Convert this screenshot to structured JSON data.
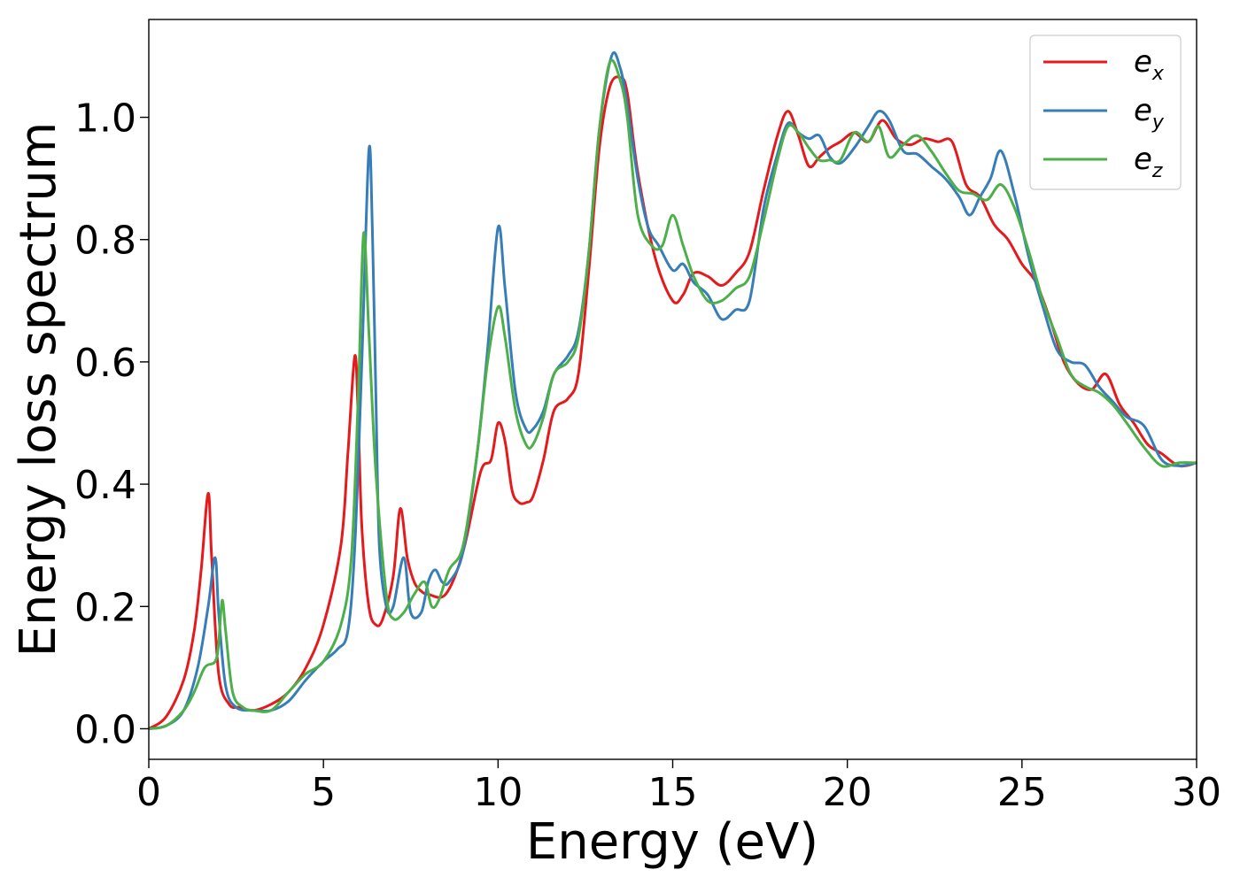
{
  "chart_data": {
    "type": "line",
    "xlabel": "Energy (eV)",
    "ylabel": "Energy loss spectrum",
    "xlim": [
      0,
      30
    ],
    "ylim": [
      -0.05,
      1.16
    ],
    "xticks": [
      0,
      5,
      10,
      15,
      20,
      25,
      30
    ],
    "yticks": [
      0.0,
      0.2,
      0.4,
      0.6,
      0.8,
      1.0
    ],
    "xtick_labels": [
      "0",
      "5",
      "10",
      "15",
      "20",
      "25",
      "30"
    ],
    "ytick_labels": [
      "0.0",
      "0.2",
      "0.4",
      "0.6",
      "0.8",
      "1.0"
    ],
    "grid": false,
    "legend_position": "top-right",
    "series": [
      {
        "name": "e",
        "sub": "x",
        "color": "#e41a1c",
        "x": [
          0,
          0.5,
          1.0,
          1.3,
          1.5,
          1.7,
          1.8,
          2.0,
          2.3,
          2.6,
          3.0,
          3.5,
          4.0,
          4.5,
          5.0,
          5.5,
          5.7,
          5.9,
          6.0,
          6.1,
          6.3,
          6.5,
          6.7,
          7.0,
          7.2,
          7.4,
          7.6,
          7.8,
          8.0,
          8.5,
          9.0,
          9.5,
          9.8,
          10.0,
          10.2,
          10.4,
          10.6,
          10.8,
          11.0,
          11.3,
          11.6,
          12.0,
          12.3,
          12.6,
          12.9,
          13.2,
          13.5,
          13.7,
          14.0,
          14.5,
          15.0,
          15.3,
          15.6,
          16.0,
          16.4,
          16.8,
          17.2,
          17.6,
          18.0,
          18.3,
          18.6,
          18.9,
          19.2,
          19.5,
          19.8,
          20.2,
          20.6,
          21.0,
          21.4,
          21.8,
          22.2,
          22.6,
          23.0,
          23.4,
          23.8,
          24.2,
          24.6,
          25.0,
          25.4,
          25.8,
          26.2,
          26.6,
          27.0,
          27.4,
          27.8,
          28.2,
          28.6,
          29.0,
          29.5,
          30.0
        ],
        "y": [
          0.0,
          0.02,
          0.08,
          0.16,
          0.26,
          0.385,
          0.28,
          0.09,
          0.04,
          0.035,
          0.03,
          0.04,
          0.06,
          0.1,
          0.17,
          0.3,
          0.45,
          0.61,
          0.5,
          0.33,
          0.2,
          0.17,
          0.18,
          0.25,
          0.36,
          0.28,
          0.24,
          0.225,
          0.22,
          0.22,
          0.29,
          0.42,
          0.44,
          0.5,
          0.47,
          0.39,
          0.37,
          0.37,
          0.38,
          0.44,
          0.52,
          0.54,
          0.58,
          0.75,
          0.95,
          1.05,
          1.065,
          1.04,
          0.91,
          0.77,
          0.7,
          0.71,
          0.745,
          0.74,
          0.725,
          0.745,
          0.78,
          0.88,
          0.97,
          1.01,
          0.97,
          0.92,
          0.935,
          0.95,
          0.96,
          0.975,
          0.96,
          0.995,
          0.965,
          0.955,
          0.965,
          0.96,
          0.96,
          0.89,
          0.87,
          0.825,
          0.8,
          0.76,
          0.73,
          0.67,
          0.6,
          0.565,
          0.555,
          0.58,
          0.53,
          0.5,
          0.465,
          0.45,
          0.43,
          0.435
        ]
      },
      {
        "name": "e",
        "sub": "y",
        "color": "#377eb8",
        "x": [
          0,
          0.5,
          1.0,
          1.4,
          1.7,
          1.9,
          2.0,
          2.2,
          2.5,
          3.0,
          3.5,
          4.0,
          4.5,
          5.0,
          5.4,
          5.7,
          5.9,
          6.1,
          6.3,
          6.4,
          6.5,
          6.6,
          6.8,
          7.0,
          7.3,
          7.5,
          7.8,
          8.0,
          8.2,
          8.4,
          8.6,
          9.0,
          9.4,
          9.7,
          10.0,
          10.2,
          10.5,
          10.8,
          11.0,
          11.3,
          11.6,
          12.0,
          12.3,
          12.6,
          12.9,
          13.25,
          13.5,
          13.7,
          14.0,
          14.3,
          14.6,
          15.0,
          15.3,
          15.6,
          16.0,
          16.4,
          16.8,
          17.2,
          17.6,
          18.0,
          18.3,
          18.6,
          18.9,
          19.2,
          19.5,
          19.8,
          20.2,
          20.6,
          20.9,
          21.2,
          21.6,
          22.0,
          22.4,
          22.8,
          23.2,
          23.5,
          23.8,
          24.1,
          24.4,
          24.8,
          25.2,
          25.6,
          26.0,
          26.4,
          26.8,
          27.2,
          27.6,
          28.0,
          28.5,
          29.0,
          29.5,
          30.0
        ],
        "y": [
          0.0,
          0.005,
          0.03,
          0.1,
          0.2,
          0.28,
          0.19,
          0.07,
          0.035,
          0.03,
          0.03,
          0.045,
          0.08,
          0.11,
          0.13,
          0.16,
          0.3,
          0.6,
          0.945,
          0.82,
          0.55,
          0.3,
          0.2,
          0.2,
          0.28,
          0.19,
          0.19,
          0.24,
          0.26,
          0.24,
          0.24,
          0.29,
          0.45,
          0.62,
          0.82,
          0.72,
          0.55,
          0.49,
          0.49,
          0.52,
          0.58,
          0.61,
          0.65,
          0.78,
          0.98,
          1.1,
          1.08,
          1.02,
          0.9,
          0.82,
          0.79,
          0.75,
          0.76,
          0.73,
          0.71,
          0.67,
          0.685,
          0.7,
          0.85,
          0.94,
          0.99,
          0.975,
          0.965,
          0.97,
          0.935,
          0.925,
          0.95,
          0.985,
          1.01,
          0.995,
          0.945,
          0.94,
          0.92,
          0.9,
          0.87,
          0.84,
          0.87,
          0.9,
          0.945,
          0.87,
          0.77,
          0.69,
          0.62,
          0.6,
          0.595,
          0.56,
          0.535,
          0.51,
          0.495,
          0.44,
          0.43,
          0.435
        ]
      },
      {
        "name": "e",
        "sub": "z",
        "color": "#4daf4a",
        "x": [
          0,
          0.5,
          1.0,
          1.3,
          1.6,
          1.9,
          2.0,
          2.1,
          2.2,
          2.4,
          2.7,
          3.0,
          3.5,
          4.0,
          4.5,
          5.0,
          5.5,
          5.8,
          6.0,
          6.15,
          6.3,
          6.5,
          6.8,
          7.0,
          7.3,
          7.6,
          7.9,
          8.1,
          8.3,
          8.6,
          9.0,
          9.4,
          9.7,
          10.0,
          10.2,
          10.5,
          10.8,
          11.0,
          11.3,
          11.6,
          12.0,
          12.3,
          12.6,
          12.9,
          13.2,
          13.5,
          13.7,
          14.0,
          14.4,
          14.7,
          15.0,
          15.3,
          15.6,
          16.0,
          16.4,
          16.8,
          17.2,
          17.6,
          18.0,
          18.3,
          18.6,
          18.9,
          19.2,
          19.5,
          19.8,
          20.2,
          20.6,
          20.9,
          21.2,
          21.6,
          22.0,
          22.4,
          22.8,
          23.2,
          23.6,
          24.0,
          24.4,
          24.8,
          25.2,
          25.6,
          26.0,
          26.4,
          26.8,
          27.2,
          27.6,
          28.0,
          28.5,
          29.0,
          29.5,
          30.0
        ],
        "y": [
          0.0,
          0.005,
          0.03,
          0.06,
          0.1,
          0.11,
          0.14,
          0.21,
          0.16,
          0.06,
          0.035,
          0.03,
          0.03,
          0.06,
          0.09,
          0.11,
          0.17,
          0.28,
          0.55,
          0.81,
          0.65,
          0.42,
          0.22,
          0.18,
          0.19,
          0.22,
          0.24,
          0.2,
          0.21,
          0.26,
          0.3,
          0.45,
          0.6,
          0.69,
          0.64,
          0.52,
          0.465,
          0.465,
          0.51,
          0.58,
          0.6,
          0.64,
          0.78,
          0.98,
          1.09,
          1.06,
          1.0,
          0.84,
          0.79,
          0.79,
          0.84,
          0.79,
          0.74,
          0.7,
          0.7,
          0.72,
          0.74,
          0.83,
          0.93,
          0.985,
          0.975,
          0.95,
          0.93,
          0.93,
          0.93,
          0.975,
          0.96,
          0.985,
          0.935,
          0.955,
          0.97,
          0.945,
          0.91,
          0.88,
          0.875,
          0.865,
          0.89,
          0.85,
          0.78,
          0.7,
          0.64,
          0.58,
          0.56,
          0.55,
          0.53,
          0.5,
          0.46,
          0.43,
          0.435,
          0.435
        ]
      }
    ]
  }
}
